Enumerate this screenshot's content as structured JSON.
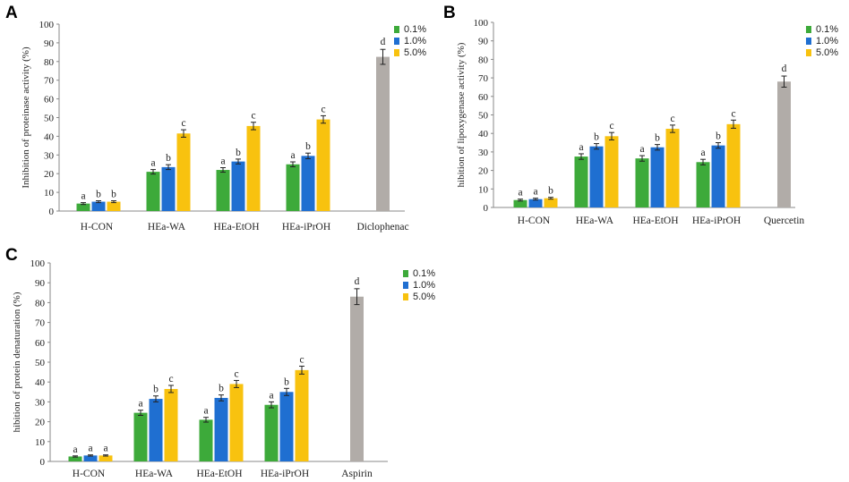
{
  "colors": {
    "series_0.1": "#3DAA3A",
    "series_1.0": "#1F6FD1",
    "series_5.0": "#F8C20F",
    "control": "#B1ACA8",
    "axis": "#888888"
  },
  "chart_data": [
    {
      "type": "bar",
      "panel": "A",
      "ylabel": "Inhibition of proteinase activity (%)",
      "ylim": [
        0,
        100
      ],
      "yticks": [
        0,
        10,
        20,
        30,
        40,
        50,
        60,
        70,
        80,
        90,
        100
      ],
      "categories": [
        "H-CON",
        "HEa-WA",
        "HEa-EtOH",
        "HEa-iPrOH",
        "Diclophenac"
      ],
      "legend_position": "top-right",
      "series": [
        {
          "name": "0.1%",
          "values": [
            4,
            21,
            22,
            25,
            null
          ],
          "errors": [
            0.5,
            1.2,
            1.2,
            1.3,
            null
          ],
          "letters": [
            "a",
            "a",
            "a",
            "a",
            null
          ]
        },
        {
          "name": "1.0%",
          "values": [
            5,
            23.5,
            26.5,
            29.5,
            null
          ],
          "errors": [
            0.5,
            1.3,
            1.3,
            1.5,
            null
          ],
          "letters": [
            "b",
            "b",
            "b",
            "b",
            null
          ]
        },
        {
          "name": "5.0%",
          "values": [
            5,
            41.5,
            45.5,
            49,
            null
          ],
          "errors": [
            0.5,
            2,
            2,
            2,
            null
          ],
          "letters": [
            "b",
            "c",
            "c",
            "c",
            null
          ]
        }
      ],
      "control": {
        "category": "Diclophenac",
        "value": 82.5,
        "error": 4,
        "letter": "d"
      }
    },
    {
      "type": "bar",
      "panel": "B",
      "ylabel": "hibition of lipoxygenase activity (%)",
      "ylim": [
        0,
        100
      ],
      "yticks": [
        0,
        10,
        20,
        30,
        40,
        50,
        60,
        70,
        80,
        90,
        100
      ],
      "categories": [
        "H-CON",
        "HEa-WA",
        "HEa-EtOH",
        "HEa-iPrOH",
        "Quercetin"
      ],
      "legend_position": "top-right",
      "series": [
        {
          "name": "0.1%",
          "values": [
            4,
            27.5,
            26.5,
            24.5,
            null
          ],
          "errors": [
            0.5,
            1.5,
            1.5,
            1.5,
            null
          ],
          "letters": [
            "a",
            "a",
            "a",
            "a",
            null
          ]
        },
        {
          "name": "1.0%",
          "values": [
            4.5,
            33,
            32.5,
            33.5,
            null
          ],
          "errors": [
            0.5,
            1.5,
            1.5,
            1.5,
            null
          ],
          "letters": [
            "a",
            "b",
            "b",
            "b",
            null
          ]
        },
        {
          "name": "5.0%",
          "values": [
            5,
            38.5,
            42.5,
            45,
            null
          ],
          "errors": [
            0.5,
            2,
            2,
            2.2,
            null
          ],
          "letters": [
            "b",
            "c",
            "c",
            "c",
            null
          ]
        }
      ],
      "control": {
        "category": "Quercetin",
        "value": 68,
        "error": 3,
        "letter": "d"
      }
    },
    {
      "type": "bar",
      "panel": "C",
      "ylabel": "hibition of protein denaturation (%)",
      "ylim": [
        0,
        100
      ],
      "yticks": [
        0,
        10,
        20,
        30,
        40,
        50,
        60,
        70,
        80,
        90,
        100
      ],
      "categories": [
        "H-CON",
        "HEa-WA",
        "HEa-EtOH",
        "HEa-iPrOH",
        "Aspirin"
      ],
      "legend_position": "top-right",
      "series": [
        {
          "name": "0.1%",
          "values": [
            2.5,
            24.5,
            21,
            28.5,
            null
          ],
          "errors": [
            0.3,
            1.3,
            1.2,
            1.5,
            null
          ],
          "letters": [
            "a",
            "a",
            "a",
            "a",
            null
          ]
        },
        {
          "name": "1.0%",
          "values": [
            3,
            31.5,
            32,
            35,
            null
          ],
          "errors": [
            0.3,
            1.5,
            1.5,
            1.8,
            null
          ],
          "letters": [
            "a",
            "b",
            "b",
            "b",
            null
          ]
        },
        {
          "name": "5.0%",
          "values": [
            3,
            36.5,
            39,
            46,
            null
          ],
          "errors": [
            0.3,
            1.8,
            1.8,
            2,
            null
          ],
          "letters": [
            "a",
            "c",
            "c",
            "c",
            null
          ]
        }
      ],
      "control": {
        "category": "Aspirin",
        "value": 83,
        "error": 4,
        "letter": "d"
      }
    }
  ]
}
